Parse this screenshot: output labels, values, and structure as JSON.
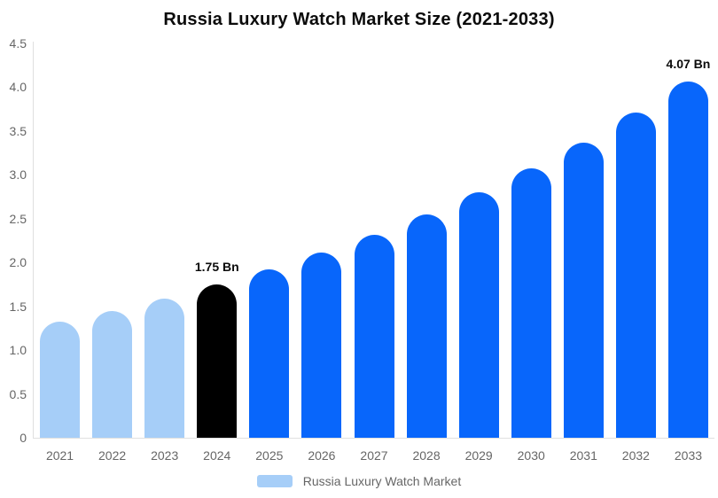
{
  "title": "Russia Luxury Watch Market Size (2021-2033)",
  "legend": {
    "label": "Russia Luxury Watch Market",
    "swatch_color": "#A6CEF8"
  },
  "colors": {
    "historical_bar": "#A6CEF8",
    "base_year_bar": "#000000",
    "forecast_bar": "#0866FB",
    "axis_line": "#e0e0e0",
    "tick_text": "#666666",
    "annotation_text": "#0b0b0b"
  },
  "chart_data": {
    "type": "bar",
    "title": "Russia Luxury Watch Market Size (2021-2033)",
    "xlabel": "",
    "ylabel": "",
    "unit": "Bn",
    "categories": [
      "2021",
      "2022",
      "2023",
      "2024",
      "2025",
      "2026",
      "2027",
      "2028",
      "2029",
      "2030",
      "2031",
      "2032",
      "2033"
    ],
    "series": [
      {
        "name": "Russia Luxury Watch Market",
        "values": [
          1.32,
          1.45,
          1.59,
          1.75,
          1.92,
          2.11,
          2.32,
          2.55,
          2.8,
          3.07,
          3.37,
          3.71,
          4.07
        ]
      }
    ],
    "bar_colors": [
      "#A6CEF8",
      "#A6CEF8",
      "#A6CEF8",
      "#000000",
      "#0866FB",
      "#0866FB",
      "#0866FB",
      "#0866FB",
      "#0866FB",
      "#0866FB",
      "#0866FB",
      "#0866FB",
      "#0866FB"
    ],
    "annotations": [
      {
        "category": "2024",
        "text": "1.75 Bn"
      },
      {
        "category": "2033",
        "text": "4.07 Bn"
      }
    ],
    "ylim": [
      0,
      4.5
    ],
    "y_ticks": [
      "4.5",
      "4.0",
      "3.5",
      "3.0",
      "2.5",
      "2.0",
      "1.5",
      "1.0",
      "0.5",
      "0"
    ],
    "grid": false,
    "legend_position": "bottom"
  }
}
